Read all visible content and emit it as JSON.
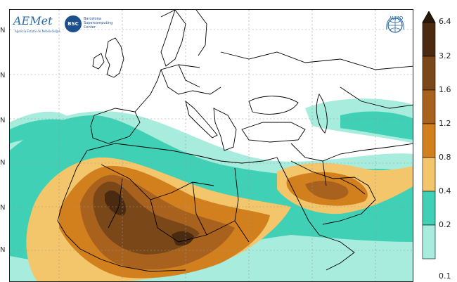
{
  "logos": {
    "aemet": {
      "wordmark": "AEMet",
      "tagline": "Agencia Estatal de Meteorología"
    },
    "bsc": {
      "mark": "BSC",
      "lines": [
        "Barcelona",
        "Supercomputing",
        "Center"
      ]
    },
    "wmo": {
      "label": "WMO",
      "icon": "un-globe-emblem-icon"
    }
  },
  "latitude_labels": [
    "N",
    "N",
    "N",
    "N",
    "N",
    "N"
  ],
  "colorbar": {
    "ticks": [
      "6.4",
      "3.2",
      "1.6",
      "1.2",
      "0.8",
      "0.4",
      "0.2",
      "0.1"
    ],
    "colors": [
      "#4a2a10",
      "#7a4818",
      "#a8621e",
      "#d2801e",
      "#f3c66c",
      "#3fd0b5",
      "#a7ecdc"
    ]
  },
  "map": {
    "region": "Europe, North Africa and Middle East",
    "land_color": "#ffffff",
    "border_color": "#000000"
  }
}
